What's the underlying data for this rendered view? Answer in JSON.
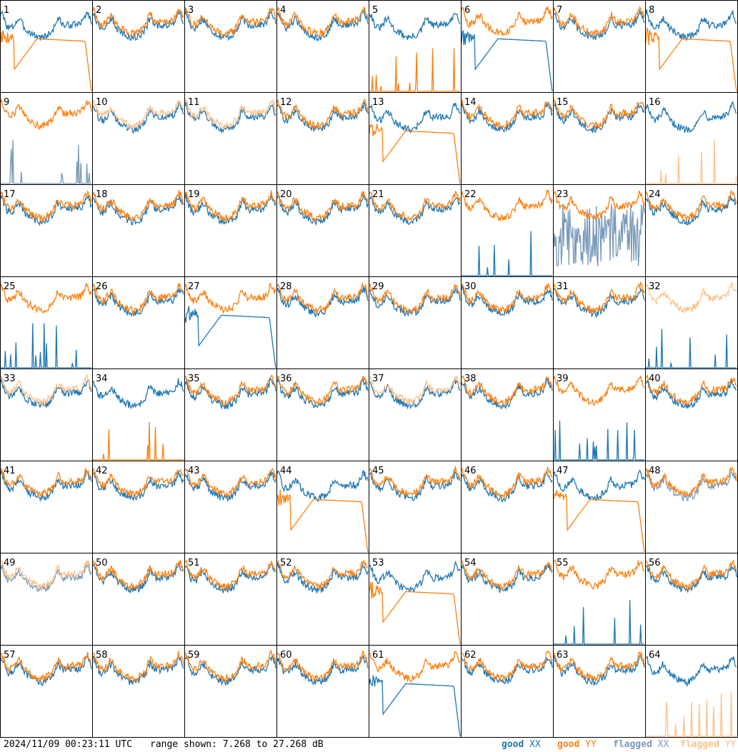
{
  "chart_data": {
    "type": "line",
    "layout": "8x8 small multiples, one panel per antenna",
    "grid": false,
    "legend_position": "bottom-right",
    "series_styles": [
      {
        "name": "good XX",
        "color": "#1f77b4"
      },
      {
        "name": "good YY",
        "color": "#ff7f0e"
      },
      {
        "name": "flagged XX",
        "color": "#7a9ab8"
      },
      {
        "name": "flagged YY",
        "color": "#ffc08a"
      }
    ],
    "panels": [
      {
        "label": "1",
        "xx": "good",
        "yy": "good",
        "yy_shape": "decay"
      },
      {
        "label": "2",
        "xx": "good",
        "yy": "good"
      },
      {
        "label": "3",
        "xx": "good",
        "yy": "good"
      },
      {
        "label": "4",
        "xx": "good",
        "yy": "good"
      },
      {
        "label": "5",
        "xx": "good",
        "yy": "good",
        "yy_shape": "spikes"
      },
      {
        "label": "6",
        "xx": "good",
        "yy": "good",
        "xx_shape": "decay"
      },
      {
        "label": "7",
        "xx": "good",
        "yy": "good"
      },
      {
        "label": "8",
        "xx": "good",
        "yy": "good",
        "yy_shape": "decay"
      },
      {
        "label": "9",
        "xx": "flagged",
        "yy": "good",
        "xx_shape": "spikes"
      },
      {
        "label": "10",
        "xx": "good",
        "yy": "flagged"
      },
      {
        "label": "11",
        "xx": "good",
        "yy": "flagged"
      },
      {
        "label": "12",
        "xx": "good",
        "yy": "good"
      },
      {
        "label": "13",
        "xx": "good",
        "yy": "good",
        "yy_shape": "decay"
      },
      {
        "label": "14",
        "xx": "good",
        "yy": "good"
      },
      {
        "label": "15",
        "xx": "good",
        "yy": "good"
      },
      {
        "label": "16",
        "xx": "good",
        "yy": "flagged",
        "yy_shape": "spikes"
      },
      {
        "label": "17",
        "xx": "good",
        "yy": "good"
      },
      {
        "label": "18",
        "xx": "good",
        "yy": "good"
      },
      {
        "label": "19",
        "xx": "good",
        "yy": "good"
      },
      {
        "label": "20",
        "xx": "good",
        "yy": "good"
      },
      {
        "label": "21",
        "xx": "good",
        "yy": "good"
      },
      {
        "label": "22",
        "xx": "good",
        "yy": "good",
        "xx_shape": "spikes"
      },
      {
        "label": "23",
        "xx": "flagged",
        "yy": "good",
        "xx_shape": "noisy"
      },
      {
        "label": "24",
        "xx": "good",
        "yy": "good"
      },
      {
        "label": "25",
        "xx": "good",
        "yy": "good",
        "xx_shape": "spikes"
      },
      {
        "label": "26",
        "xx": "good",
        "yy": "good"
      },
      {
        "label": "27",
        "xx": "good",
        "yy": "good",
        "xx_shape": "decay"
      },
      {
        "label": "28",
        "xx": "good",
        "yy": "good"
      },
      {
        "label": "29",
        "xx": "good",
        "yy": "good"
      },
      {
        "label": "30",
        "xx": "good",
        "yy": "good"
      },
      {
        "label": "31",
        "xx": "good",
        "yy": "good"
      },
      {
        "label": "32",
        "xx": "good",
        "yy": "flagged",
        "xx_shape": "spikes"
      },
      {
        "label": "33",
        "xx": "good",
        "yy": "flagged"
      },
      {
        "label": "34",
        "xx": "good",
        "yy": "good",
        "yy_shape": "spikes"
      },
      {
        "label": "35",
        "xx": "good",
        "yy": "good"
      },
      {
        "label": "36",
        "xx": "good",
        "yy": "good"
      },
      {
        "label": "37",
        "xx": "good",
        "yy": "flagged"
      },
      {
        "label": "38",
        "xx": "good",
        "yy": "good"
      },
      {
        "label": "39",
        "xx": "good",
        "yy": "good",
        "xx_shape": "spikes"
      },
      {
        "label": "40",
        "xx": "good",
        "yy": "good"
      },
      {
        "label": "41",
        "xx": "good",
        "yy": "good"
      },
      {
        "label": "42",
        "xx": "good",
        "yy": "good"
      },
      {
        "label": "43",
        "xx": "good",
        "yy": "good"
      },
      {
        "label": "44",
        "xx": "good",
        "yy": "good",
        "yy_shape": "decay"
      },
      {
        "label": "45",
        "xx": "good",
        "yy": "good"
      },
      {
        "label": "46",
        "xx": "good",
        "yy": "good"
      },
      {
        "label": "47",
        "xx": "good",
        "yy": "good",
        "yy_shape": "decay"
      },
      {
        "label": "48",
        "xx": "flagged",
        "yy": "good"
      },
      {
        "label": "49",
        "xx": "flagged",
        "yy": "flagged"
      },
      {
        "label": "50",
        "xx": "good",
        "yy": "good"
      },
      {
        "label": "51",
        "xx": "good",
        "yy": "good"
      },
      {
        "label": "52",
        "xx": "good",
        "yy": "good"
      },
      {
        "label": "53",
        "xx": "good",
        "yy": "good",
        "yy_shape": "decay"
      },
      {
        "label": "54",
        "xx": "good",
        "yy": "good"
      },
      {
        "label": "55",
        "xx": "good",
        "yy": "good",
        "xx_shape": "spikes"
      },
      {
        "label": "56",
        "xx": "good",
        "yy": "good"
      },
      {
        "label": "57",
        "xx": "good",
        "yy": "good"
      },
      {
        "label": "58",
        "xx": "good",
        "yy": "good"
      },
      {
        "label": "59",
        "xx": "good",
        "yy": "good"
      },
      {
        "label": "60",
        "xx": "good",
        "yy": "good"
      },
      {
        "label": "61",
        "xx": "good",
        "yy": "good",
        "xx_shape": "decay"
      },
      {
        "label": "62",
        "xx": "good",
        "yy": "good"
      },
      {
        "label": "63",
        "xx": "good",
        "yy": "good"
      },
      {
        "label": "64",
        "xx": "good",
        "yy": "flagged",
        "yy_shape": "spikes"
      }
    ]
  },
  "footer": {
    "timestamp": "2024/11/09 00:23:11 UTC",
    "range_text": "range shown: 7.268 to 27.268 dB"
  },
  "legend": [
    {
      "word": "good",
      "box": "XX",
      "color": "#1f77b4"
    },
    {
      "word": "good",
      "box": "YY",
      "color": "#ff7f0e"
    },
    {
      "word": "flagged",
      "box": "XX",
      "color": "#7a9ab8"
    },
    {
      "word": "flagged",
      "box": "YY",
      "color": "#ffc08a"
    }
  ]
}
